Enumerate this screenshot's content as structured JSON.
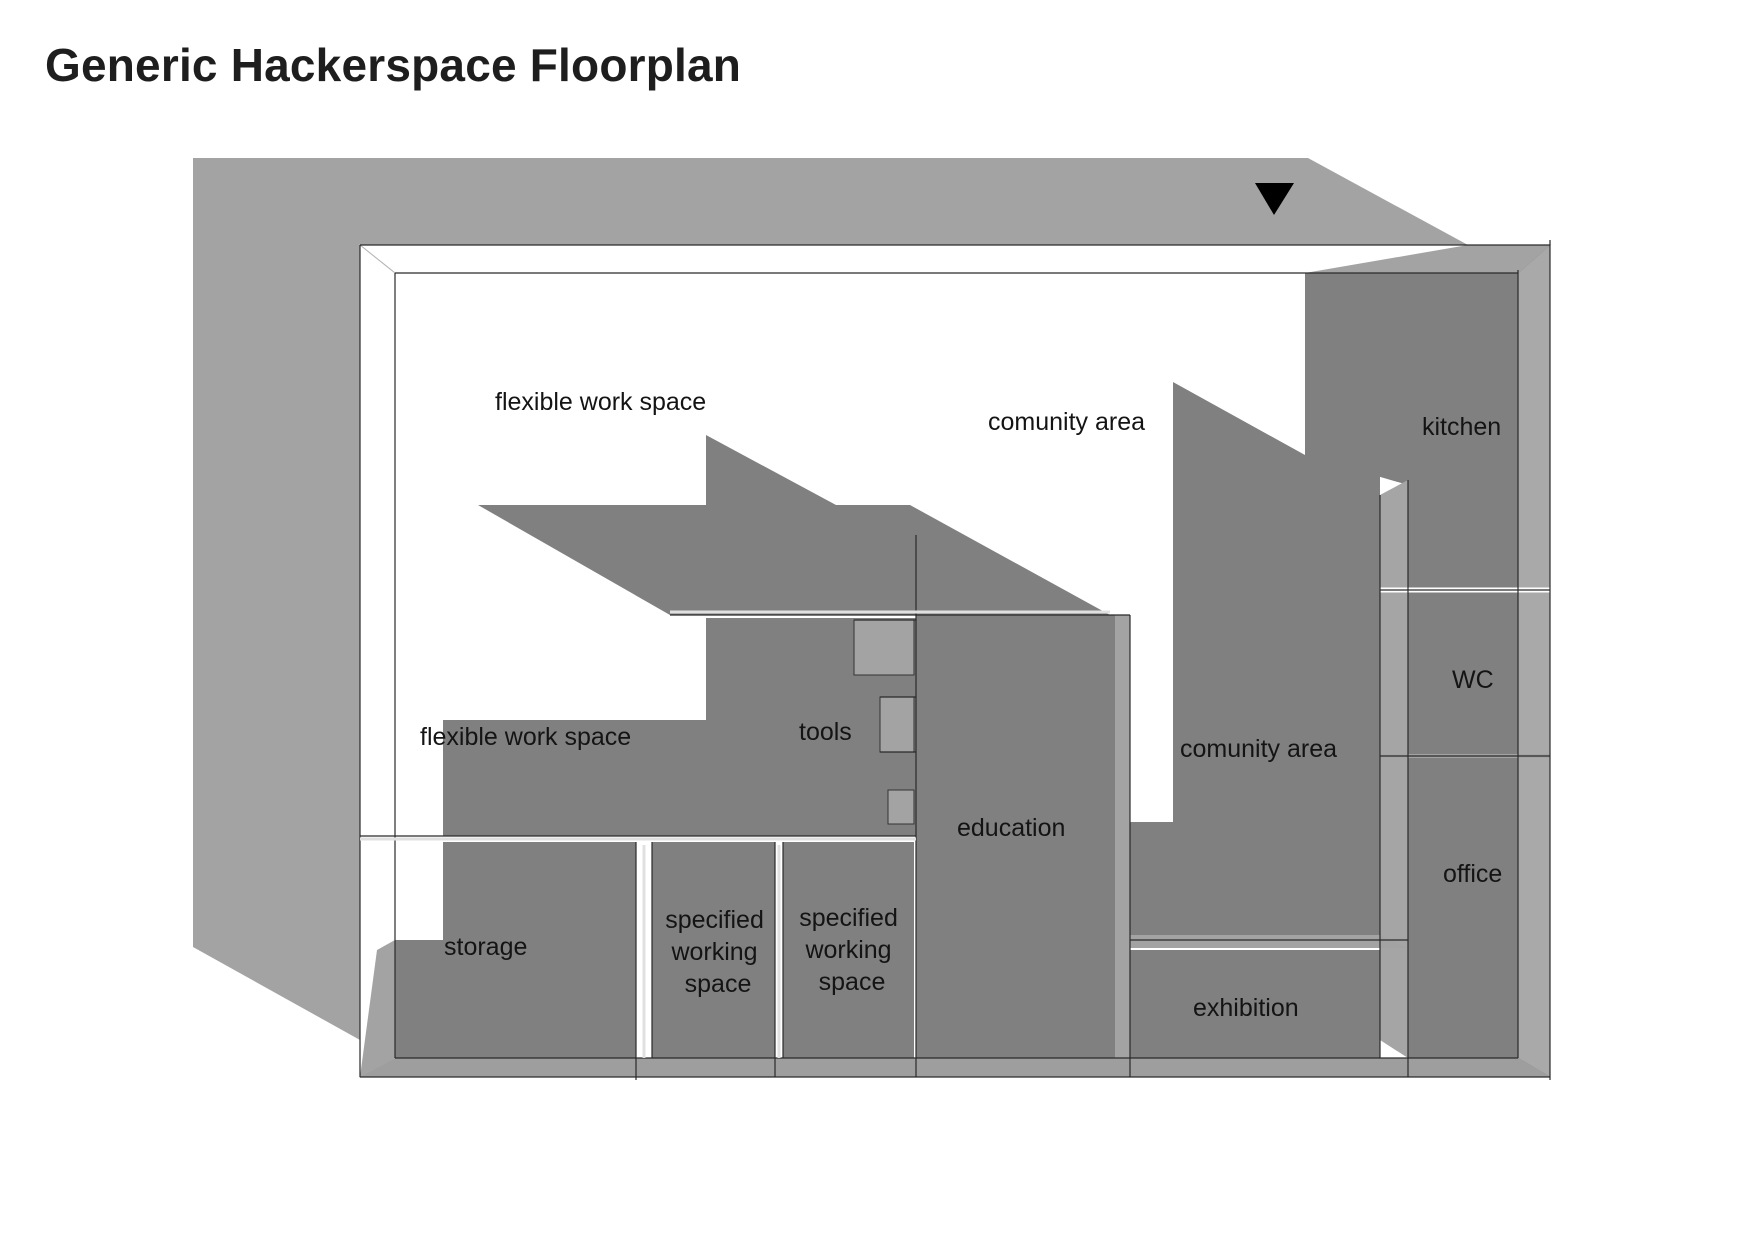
{
  "title": "Generic Hackerspace Floorplan",
  "colors": {
    "background": "#ffffff",
    "outer_wall": "#a3a3a3",
    "room_fill": "#808080",
    "wall_edge": "#b0b0b0",
    "line": "#2a2a2a",
    "text": "#141414"
  },
  "icons": {
    "entrance": "entrance-triangle-icon"
  },
  "rooms": {
    "flexible_work_space_top": "flexible work space",
    "comunity_area_top": "comunity area",
    "kitchen": "kitchen",
    "tools": "tools",
    "flexible_work_space_left": "flexible work space",
    "wc": "WC",
    "comunity_area_right": "comunity area",
    "education": "education",
    "office": "office",
    "storage": "storage",
    "specified_working_space_1": [
      "specified",
      "working",
      "space"
    ],
    "specified_working_space_2": [
      "specified",
      "working",
      "space"
    ],
    "exhibition": "exhibition"
  }
}
